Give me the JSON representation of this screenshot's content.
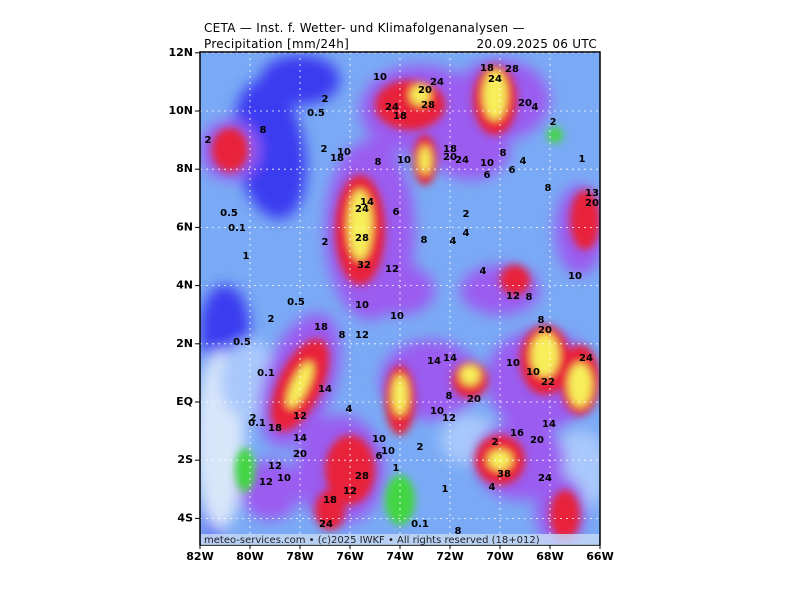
{
  "header": {
    "title": "CETA — Inst. f. Wetter- und Klimafolgenanalysen —",
    "parameter": "Precipitation [mm/24h]",
    "valid_time": "20.09.2025 06 UTC"
  },
  "map": {
    "lat_ticks": [
      {
        "value": 12,
        "label": "12N"
      },
      {
        "value": 10,
        "label": "10N"
      },
      {
        "value": 8,
        "label": "8N"
      },
      {
        "value": 6,
        "label": "6N"
      },
      {
        "value": 4,
        "label": "4N"
      },
      {
        "value": 2,
        "label": "2N"
      },
      {
        "value": 0,
        "label": "EQ"
      },
      {
        "value": -2,
        "label": "2S"
      },
      {
        "value": -4,
        "label": "4S"
      }
    ],
    "lon_ticks": [
      {
        "value": -82,
        "label": "82W"
      },
      {
        "value": -80,
        "label": "80W"
      },
      {
        "value": -78,
        "label": "78W"
      },
      {
        "value": -76,
        "label": "76W"
      },
      {
        "value": -74,
        "label": "74W"
      },
      {
        "value": -72,
        "label": "72W"
      },
      {
        "value": -70,
        "label": "70W"
      },
      {
        "value": -68,
        "label": "68W"
      },
      {
        "value": -66,
        "label": "66W"
      }
    ],
    "contour_labels": [
      10,
      24,
      20,
      28,
      24,
      18,
      18,
      28,
      24,
      20,
      4,
      2,
      1,
      8,
      4,
      8,
      6,
      10,
      6,
      24,
      20,
      18,
      8,
      10,
      0.5,
      2,
      2,
      8,
      2,
      18,
      10,
      14,
      24,
      6,
      2,
      4,
      4,
      8,
      28,
      32,
      12,
      2,
      0.5,
      0.1,
      1,
      0.5,
      2,
      10,
      10,
      8,
      12,
      18,
      0.5,
      0.1,
      14,
      4,
      12,
      2,
      0.1,
      18,
      14,
      20,
      10,
      6,
      10,
      2,
      1,
      12,
      10,
      12,
      18,
      12,
      28,
      1,
      0.1,
      8,
      24,
      10,
      12,
      8,
      14,
      14,
      20,
      10,
      10,
      22,
      20,
      8,
      12,
      8,
      4,
      10,
      24,
      14,
      20,
      16,
      2,
      38,
      24,
      4,
      13,
      20
    ]
  },
  "footer": "meteo-services.com • (c)2025 IWKF • All rights reserved (18+012)"
}
